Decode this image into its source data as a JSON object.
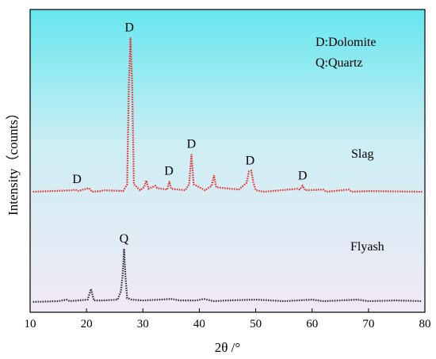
{
  "chart_data": {
    "type": "line",
    "title": "",
    "xlabel": "2θ /°",
    "ylabel": "Intensity（counts）",
    "xlim": [
      10,
      80
    ],
    "xticks": [
      "10",
      "20",
      "30",
      "40",
      "50",
      "60",
      "70",
      "80"
    ],
    "yticks_shown": false,
    "grid": false,
    "legend_box": {
      "lines": [
        "D:Dolomite",
        "Q:Quartz"
      ],
      "position": "top-right"
    },
    "background_gradient": [
      "#66e6ef",
      "#f1e9f6"
    ],
    "series": [
      {
        "name": "Slag",
        "color": "#e8312f",
        "line_style": "dotted",
        "baseline": 0,
        "points": [
          [
            10.5,
            0
          ],
          [
            17.5,
            2
          ],
          [
            18.0,
            3
          ],
          [
            18.5,
            1
          ],
          [
            20.4,
            5
          ],
          [
            21.0,
            0
          ],
          [
            22.5,
            1
          ],
          [
            23.2,
            2
          ],
          [
            26.5,
            1
          ],
          [
            27.2,
            10
          ],
          [
            27.5,
            140
          ],
          [
            27.8,
            205
          ],
          [
            28.1,
            140
          ],
          [
            28.4,
            10
          ],
          [
            29.5,
            2
          ],
          [
            30.2,
            6
          ],
          [
            30.6,
            15
          ],
          [
            31.0,
            4
          ],
          [
            32.2,
            8
          ],
          [
            32.5,
            5
          ],
          [
            34.3,
            3
          ],
          [
            34.7,
            14
          ],
          [
            35.0,
            4
          ],
          [
            37.5,
            2
          ],
          [
            38.2,
            10
          ],
          [
            38.6,
            50
          ],
          [
            39.0,
            10
          ],
          [
            41.0,
            2
          ],
          [
            42.2,
            8
          ],
          [
            42.6,
            22
          ],
          [
            43.0,
            6
          ],
          [
            47.0,
            3
          ],
          [
            48.4,
            12
          ],
          [
            48.8,
            27
          ],
          [
            49.2,
            28
          ],
          [
            49.6,
            12
          ],
          [
            50.0,
            2
          ],
          [
            51.5,
            0
          ],
          [
            57.4,
            4
          ],
          [
            57.8,
            3
          ],
          [
            58.3,
            8
          ],
          [
            58.8,
            2
          ],
          [
            62.0,
            3
          ],
          [
            62.5,
            0
          ],
          [
            66.5,
            3
          ],
          [
            67.0,
            0
          ],
          [
            70.0,
            1
          ],
          [
            79.5,
            0
          ]
        ]
      },
      {
        "name": "Flyash",
        "color": "#333333",
        "line_style": "dotted",
        "baseline": 0,
        "points": [
          [
            10.5,
            0
          ],
          [
            15.0,
            1
          ],
          [
            16.5,
            3
          ],
          [
            17.0,
            1
          ],
          [
            20.2,
            3
          ],
          [
            20.8,
            17
          ],
          [
            21.3,
            2
          ],
          [
            23.0,
            2
          ],
          [
            25.5,
            3
          ],
          [
            26.1,
            14
          ],
          [
            26.4,
            35
          ],
          [
            26.65,
            70
          ],
          [
            26.9,
            35
          ],
          [
            27.2,
            5
          ],
          [
            28.0,
            3
          ],
          [
            30.0,
            2
          ],
          [
            33.0,
            3
          ],
          [
            35.0,
            4
          ],
          [
            36.5,
            2
          ],
          [
            39.5,
            2
          ],
          [
            40.8,
            4
          ],
          [
            42.5,
            1
          ],
          [
            45.0,
            2
          ],
          [
            50.0,
            3
          ],
          [
            55.0,
            1
          ],
          [
            60.0,
            3
          ],
          [
            62.0,
            1
          ],
          [
            65.0,
            2
          ],
          [
            68.0,
            3
          ],
          [
            70.0,
            1
          ],
          [
            75.0,
            2
          ],
          [
            79.5,
            1
          ]
        ]
      }
    ],
    "peak_labels": [
      {
        "text": "D",
        "x": 27.6,
        "series": 0,
        "height": 205
      },
      {
        "text": "D",
        "x": 18.3,
        "series": 0,
        "height": 3
      },
      {
        "text": "D",
        "x": 34.6,
        "series": 0,
        "height": 14
      },
      {
        "text": "D",
        "x": 38.6,
        "series": 0,
        "height": 50
      },
      {
        "text": "D",
        "x": 49.0,
        "series": 0,
        "height": 28
      },
      {
        "text": "D",
        "x": 58.3,
        "series": 0,
        "height": 8
      },
      {
        "text": "Q",
        "x": 26.65,
        "series": 1,
        "height": 70
      }
    ]
  }
}
